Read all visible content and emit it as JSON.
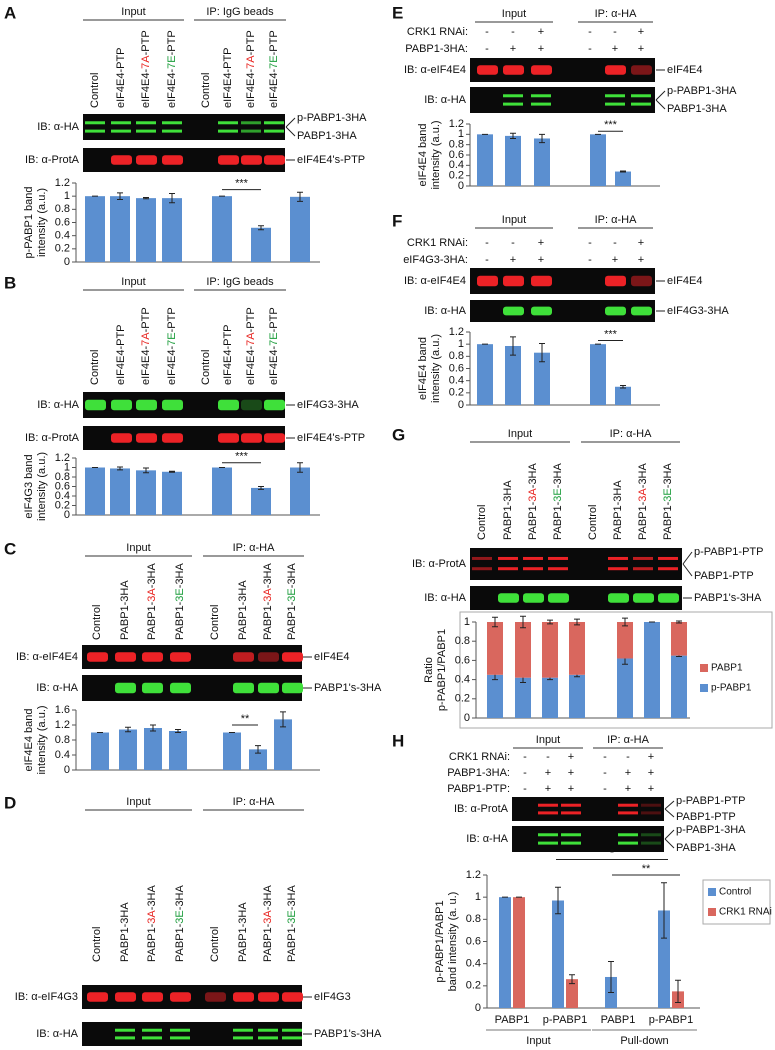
{
  "panels": [
    {
      "letter": "A",
      "groups": [
        "Input",
        "IP: IgG beads"
      ],
      "lanes": [
        [
          "Control"
        ],
        [
          "eIF4E4-PTP"
        ],
        [
          "eIF4E4-",
          "7A",
          "-PTP"
        ],
        [
          "eIF4E4-",
          "7E",
          "-PTP"
        ],
        [
          "Control"
        ],
        [
          "eIF4E4-PTP"
        ],
        [
          "eIF4E4-",
          "7A",
          "-PTP"
        ],
        [
          "eIF4E4-",
          "7E",
          "-PTP"
        ]
      ],
      "lane_colors": [
        null,
        null,
        "#e8231f",
        "#1a9c3a",
        null,
        null,
        "#e8231f",
        "#1a9c3a"
      ],
      "rows": [
        {
          "label": "IB: α-HA",
          "bands": [
            "p-PABP1-3HA",
            "PABP1-3HA"
          ]
        },
        {
          "label": "IB: α-ProtA",
          "bands": [
            "eIF4E4's-PTP"
          ]
        }
      ]
    },
    {
      "letter": "B",
      "groups": [
        "Input",
        "IP: IgG beads"
      ],
      "lanes": [
        [
          "Control"
        ],
        [
          "eIF4E4-PTP"
        ],
        [
          "eIF4E4-",
          "7A",
          "-PTP"
        ],
        [
          "eIF4E4-",
          "7E",
          "-PTP"
        ],
        [
          "Control"
        ],
        [
          "eIF4E4-PTP"
        ],
        [
          "eIF4E4-",
          "7A",
          "-PTP"
        ],
        [
          "eIF4E4-",
          "7E",
          "-PTP"
        ]
      ],
      "lane_colors": [
        null,
        null,
        "#e8231f",
        "#1a9c3a",
        null,
        null,
        "#e8231f",
        "#1a9c3a"
      ],
      "rows": [
        {
          "label": "IB: α-HA",
          "bands": [
            "eIF4G3-3HA"
          ]
        },
        {
          "label": "IB: α-ProtA",
          "bands": [
            "eIF4E4's-PTP"
          ]
        }
      ]
    },
    {
      "letter": "C",
      "groups": [
        "Input",
        "IP: α-HA"
      ],
      "lanes": [
        [
          "Control"
        ],
        [
          "PABP1-3HA"
        ],
        [
          "PABP1-",
          "3A",
          "-3HA"
        ],
        [
          "PABP1-",
          "3E",
          "-3HA"
        ],
        [
          "Control"
        ],
        [
          "PABP1-3HA"
        ],
        [
          "PABP1-",
          "3A",
          "-3HA"
        ],
        [
          "PABP1-",
          "3E",
          "-3HA"
        ]
      ],
      "lane_colors": [
        null,
        null,
        "#e8231f",
        "#1a9c3a",
        null,
        null,
        "#e8231f",
        "#1a9c3a"
      ],
      "rows": [
        {
          "label": "IB: α-eIF4E4",
          "bands": [
            "eIF4E4"
          ]
        },
        {
          "label": "IB: α-HA",
          "bands": [
            "PABP1's-3HA"
          ]
        }
      ]
    },
    {
      "letter": "D",
      "groups": [
        "Input",
        "IP: α-HA"
      ],
      "lanes": [
        [
          "Control"
        ],
        [
          "PABP1-3HA"
        ],
        [
          "PABP1-",
          "3A",
          "-3HA"
        ],
        [
          "PABP1-",
          "3E",
          "-3HA"
        ],
        [
          "Control"
        ],
        [
          "PABP1-3HA"
        ],
        [
          "PABP1-",
          "3A",
          "-3HA"
        ],
        [
          "PABP1-",
          "3E",
          "-3HA"
        ]
      ],
      "lane_colors": [
        null,
        null,
        "#e8231f",
        "#1a9c3a",
        null,
        null,
        "#e8231f",
        "#1a9c3a"
      ],
      "rows": [
        {
          "label": "IB: α-eIF4G3",
          "bands": [
            "eIF4G3"
          ]
        },
        {
          "label": "IB: α-HA",
          "bands": [
            "PABP1's-3HA"
          ]
        }
      ]
    },
    {
      "letter": "E",
      "groups": [
        "Input",
        "IP: α-HA"
      ],
      "treatments": [
        {
          "label": "CRK1 RNAi:",
          "signs": [
            "-",
            "-",
            "+",
            "-",
            "-",
            "+"
          ]
        },
        {
          "label": "PABP1-3HA:",
          "signs": [
            "-",
            "+",
            "+",
            "-",
            "+",
            "+"
          ]
        }
      ],
      "rows": [
        {
          "label": "IB: α-eIF4E4",
          "bands": [
            "eIF4E4"
          ]
        },
        {
          "label": "IB: α-HA",
          "bands": [
            "p-PABP1-3HA",
            "PABP1-3HA"
          ]
        }
      ]
    },
    {
      "letter": "F",
      "groups": [
        "Input",
        "IP: α-HA"
      ],
      "treatments": [
        {
          "label": "CRK1 RNAi:",
          "signs": [
            "-",
            "-",
            "+",
            "-",
            "-",
            "+"
          ]
        },
        {
          "label": "eIF4G3-3HA:",
          "signs": [
            "-",
            "+",
            "+",
            "-",
            "+",
            "+"
          ]
        }
      ],
      "rows": [
        {
          "label": "IB: α-eIF4E4",
          "bands": [
            "eIF4E4"
          ]
        },
        {
          "label": "IB: α-HA",
          "bands": [
            "eIF4G3-3HA"
          ]
        }
      ]
    },
    {
      "letter": "G",
      "groups": [
        "Input",
        "IP: α-HA"
      ],
      "lanes": [
        [
          "Control"
        ],
        [
          "PABP1-3HA"
        ],
        [
          "PABP1-",
          "3A",
          "-3HA"
        ],
        [
          "PABP1-",
          "3E",
          "-3HA"
        ],
        [
          "Control"
        ],
        [
          "PABP1-3HA"
        ],
        [
          "PABP1-",
          "3A",
          "-3HA"
        ],
        [
          "PABP1-",
          "3E",
          "-3HA"
        ]
      ],
      "lane_colors": [
        null,
        null,
        "#e8231f",
        "#1a9c3a",
        null,
        null,
        "#e8231f",
        "#1a9c3a"
      ],
      "rows": [
        {
          "label": "IB: α-ProtA",
          "bands": [
            "p-PABP1-PTP",
            "PABP1-PTP"
          ]
        },
        {
          "label": "IB: α-HA",
          "bands": [
            "PABP1's-3HA"
          ]
        }
      ]
    },
    {
      "letter": "H",
      "groups": [
        "Input",
        "IP: α-HA"
      ],
      "treatments": [
        {
          "label": "CRK1 RNAi:",
          "signs": [
            "-",
            "-",
            "+",
            "-",
            "-",
            "+"
          ]
        },
        {
          "label": "PABP1-3HA:",
          "signs": [
            "-",
            "+",
            "+",
            "-",
            "+",
            "+"
          ]
        },
        {
          "label": "PABP1-PTP:",
          "signs": [
            "-",
            "+",
            "+",
            "-",
            "+",
            "+"
          ]
        }
      ],
      "rows": [
        {
          "label": "IB: α-ProtA",
          "bands": [
            "p-PABP1-PTP",
            "PABP1-PTP"
          ]
        },
        {
          "label": "IB: α-HA",
          "bands": [
            "p-PABP1-3HA",
            "PABP1-3HA"
          ]
        }
      ]
    }
  ],
  "chart_data": [
    {
      "type": "bar",
      "ylabel": [
        "p-PABP1 band",
        "intensity (a.u.)"
      ],
      "categories": [
        null,
        null,
        null,
        null,
        null,
        null,
        null
      ],
      "values": [
        1,
        1.0,
        0.97,
        0.97,
        1,
        0.52,
        0.99
      ],
      "errors": [
        0,
        0.05,
        0.01,
        0.07,
        0,
        0.03,
        0.07
      ],
      "color": "#5b8fd0",
      "ylim": [
        0,
        1.2
      ],
      "yticks": [
        0,
        0.2,
        0.4,
        0.6,
        0.8,
        1,
        1.2
      ],
      "annotations": [
        "***"
      ]
    },
    {
      "type": "bar",
      "ylabel": [
        "eIF4G3 band",
        "intensity (a.u.)"
      ],
      "categories": [
        null,
        null,
        null,
        null,
        null,
        null,
        null
      ],
      "values": [
        1,
        0.98,
        0.94,
        0.91,
        1,
        0.57,
        1.0
      ],
      "errors": [
        0,
        0.03,
        0.05,
        0.01,
        0,
        0.03,
        0.1
      ],
      "color": "#5b8fd0",
      "ylim": [
        0,
        1.2
      ],
      "yticks": [
        0,
        0.2,
        0.4,
        0.6,
        0.8,
        1,
        1.2
      ],
      "annotations": [
        "***"
      ]
    },
    {
      "type": "bar",
      "ylabel": [
        "eIF4E4 band",
        "intensity (a.u.)"
      ],
      "categories": [
        null,
        null,
        null,
        null,
        null,
        null,
        null
      ],
      "values": [
        1,
        1.08,
        1.12,
        1.04,
        1,
        0.55,
        1.35
      ],
      "errors": [
        0,
        0.06,
        0.08,
        0.04,
        0,
        0.1,
        0.2
      ],
      "color": "#5b8fd0",
      "ylim": [
        0,
        1.6
      ],
      "yticks": [
        0,
        0.4,
        0.8,
        1.2,
        1.6
      ],
      "annotations": [
        "**"
      ]
    },
    {
      "type": "bar",
      "ylabel": [
        "eIF4E4 band",
        "intensity (a.u.)"
      ],
      "categories": [
        null,
        null,
        null,
        null,
        null
      ],
      "values": [
        1,
        0.97,
        0.92,
        1,
        0.28
      ],
      "errors": [
        0,
        0.05,
        0.08,
        0,
        0.01
      ],
      "color": "#5b8fd0",
      "ylim": [
        0,
        1.2
      ],
      "yticks": [
        0,
        0.2,
        0.4,
        0.6,
        0.8,
        1,
        1.2
      ],
      "annotations": [
        "***"
      ]
    },
    {
      "type": "bar",
      "ylabel": [
        "eIF4E4 band",
        "intensity (a.u.)"
      ],
      "categories": [
        null,
        null,
        null,
        null,
        null
      ],
      "values": [
        1,
        0.97,
        0.86,
        1,
        0.3
      ],
      "errors": [
        0,
        0.15,
        0.15,
        0,
        0.02
      ],
      "color": "#5b8fd0",
      "ylim": [
        0,
        1.2
      ],
      "yticks": [
        0,
        0.2,
        0.4,
        0.6,
        0.8,
        1,
        1.2
      ],
      "annotations": [
        "***"
      ]
    },
    {
      "type": "stacked_bar",
      "ylabel": [
        "Ratio",
        "p-PABP1/PABP1"
      ],
      "categories": [
        null,
        null,
        null,
        null,
        null,
        null,
        null
      ],
      "series": [
        {
          "name": "PABP1",
          "color": "#d9675e",
          "values": [
            0.55,
            0.58,
            0.58,
            0.55,
            0.38,
            0,
            0.35
          ],
          "errors": [
            0.05,
            0.06,
            0.02,
            0.03,
            0.04,
            0,
            0.01
          ]
        },
        {
          "name": "p-PABP1",
          "color": "#5b8fd0",
          "values": [
            0.45,
            0.42,
            0.42,
            0.45,
            0.62,
            1,
            0.65
          ],
          "errors": [
            0.05,
            0.05,
            0.02,
            0.02,
            0.06,
            0,
            0.01
          ]
        }
      ],
      "ylim": [
        0,
        1
      ],
      "yticks": [
        0,
        0.2,
        0.4,
        0.6,
        0.8,
        1
      ]
    },
    {
      "type": "grouped_bar",
      "ylabel": [
        "p-PABP1/PABP1",
        "band intensity (a. u.)"
      ],
      "categories": [
        "PABP1",
        "p-PABP1",
        "PABP1",
        "p-PABP1"
      ],
      "groups": [
        "Input",
        "Pull-down"
      ],
      "series": [
        {
          "name": "Control",
          "color": "#5b8fd0",
          "values": [
            1,
            0.97,
            0.28,
            0.88
          ],
          "errors": [
            0,
            0.12,
            0.14,
            0.25
          ]
        },
        {
          "name": "CRK1 RNAi",
          "color": "#d9675e",
          "values": [
            1,
            0.26,
            null,
            0.15
          ],
          "errors": [
            0,
            0.04,
            null,
            0.1
          ]
        }
      ],
      "ylim": [
        0,
        1.2
      ],
      "yticks": [
        0,
        0.2,
        0.4,
        0.6,
        0.8,
        1,
        1.2
      ],
      "annotations": [
        "*",
        "**"
      ]
    }
  ]
}
